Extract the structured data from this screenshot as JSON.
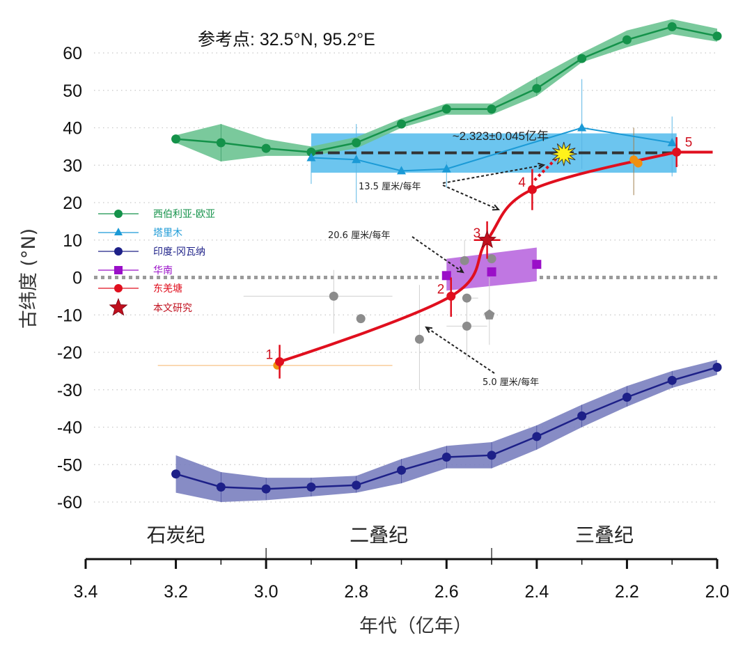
{
  "chart_data": {
    "type": "line",
    "title": "参考点: 32.5°N, 95.2°E",
    "xlabel": "年代（亿年）",
    "ylabel": "古纬度 (°N)",
    "xlim": [
      3.4,
      2.0
    ],
    "ylim": [
      -60,
      60
    ],
    "x_ticks": [
      "3.4",
      "3.2",
      "3.0",
      "2.8",
      "2.6",
      "2.4",
      "2.2",
      "2.0"
    ],
    "x_tick_values": [
      3.4,
      3.2,
      3.0,
      2.8,
      2.6,
      2.4,
      2.2,
      2.0
    ],
    "y_ticks": [
      "60",
      "50",
      "40",
      "30",
      "20",
      "10",
      "0",
      "-10",
      "-20",
      "-30",
      "-40",
      "-50",
      "-60"
    ],
    "y_tick_values": [
      60,
      50,
      40,
      30,
      20,
      10,
      0,
      -10,
      -20,
      -30,
      -40,
      -50,
      -60
    ],
    "grid": "horizontal dotted",
    "periods": [
      {
        "name": "石炭纪",
        "from": 3.4,
        "to": 3.0
      },
      {
        "name": "二叠纪",
        "from": 3.0,
        "to": 2.5
      },
      {
        "name": "三叠纪",
        "from": 2.5,
        "to": 2.0
      }
    ],
    "legend_position": "left-middle",
    "series": [
      {
        "name": "西伯利亚-欧亚",
        "color": "#14924a",
        "band_color": "#6cc391",
        "marker": "circle",
        "x": [
          3.2,
          3.1,
          3.0,
          2.9,
          2.8,
          2.7,
          2.6,
          2.5,
          2.4,
          2.3,
          2.2,
          2.1,
          2.0
        ],
        "y": [
          37,
          36,
          34.5,
          33.5,
          36,
          41,
          45,
          45,
          50.5,
          58.5,
          63.5,
          67,
          64.5
        ],
        "band_low": [
          36,
          31,
          32.5,
          32.5,
          34.5,
          40,
          43.5,
          43.5,
          48.5,
          57.5,
          61.5,
          65,
          63
        ],
        "band_high": [
          38,
          41,
          37,
          35,
          37.5,
          42.5,
          46.5,
          46.5,
          53.5,
          60,
          66,
          69,
          66.5
        ]
      },
      {
        "name": "塔里木",
        "color": "#1b9ad6",
        "marker": "triangle",
        "x": [
          2.9,
          2.8,
          2.7,
          2.6,
          2.3,
          2.1
        ],
        "y": [
          32,
          31.5,
          28.5,
          29,
          40,
          36
        ],
        "err_low": [
          25,
          20,
          28.5,
          24,
          29,
          27
        ],
        "err_high": [
          33,
          41,
          28.5,
          31,
          53,
          43
        ],
        "band_x": [
          2.9,
          2.09
        ],
        "band_y": [
          28,
          38.5
        ],
        "band_color": "#6cc5ef"
      },
      {
        "name": "印度-冈瓦纳",
        "color": "#1d2088",
        "band_color": "#7a80bf",
        "marker": "circle",
        "x": [
          3.2,
          3.1,
          3.0,
          2.9,
          2.8,
          2.7,
          2.6,
          2.5,
          2.4,
          2.3,
          2.2,
          2.1,
          2.0
        ],
        "y": [
          -52.5,
          -56,
          -56.5,
          -56,
          -55.5,
          -51.5,
          -48,
          -47.5,
          -42.5,
          -37,
          -32,
          -27.5,
          -24
        ],
        "band_low": [
          -57.5,
          -60,
          -59.5,
          -58.5,
          -57.5,
          -55,
          -51,
          -51,
          -46,
          -40,
          -34.5,
          -29.5,
          -26
        ],
        "band_high": [
          -47.5,
          -52,
          -53.5,
          -53.5,
          -53,
          -48.5,
          -45,
          -44,
          -39.5,
          -34,
          -29,
          -25,
          -22
        ]
      },
      {
        "name": "华南",
        "color": "#9a0fc8",
        "band_color": "#c077e2",
        "marker": "square",
        "x": [
          2.6,
          2.5,
          2.4
        ],
        "y": [
          0.5,
          1.5,
          3.5
        ],
        "band_polygon_x": [
          2.6,
          2.4,
          2.4,
          2.6
        ],
        "band_polygon_y": [
          5,
          8,
          -1,
          -3.5
        ]
      },
      {
        "name": "东羌塘",
        "color": "#e00f1e",
        "marker": "circle",
        "labels": [
          "1",
          "2",
          "3",
          "4",
          "5"
        ],
        "x": [
          2.97,
          2.59,
          2.51,
          2.41,
          2.09
        ],
        "y": [
          -22.5,
          -5,
          10,
          23.5,
          33.5
        ],
        "err_low": [
          -27,
          -10.5,
          5,
          18,
          29.5
        ],
        "err_high": [
          -18,
          0,
          15,
          29,
          37.5
        ]
      },
      {
        "name": "本文研究",
        "color": "#c0101e",
        "marker": "star",
        "x": [
          2.51
        ],
        "y": [
          10
        ]
      }
    ],
    "other_points": {
      "name": "grey reference poles",
      "color": "#8c8c8c",
      "points": [
        {
          "x": 2.85,
          "y": -5,
          "xerr": [
            3.05,
            2.72
          ],
          "yerr": [
            -15,
            2
          ]
        },
        {
          "x": 2.79,
          "y": -11
        },
        {
          "x": 2.66,
          "y": -16.5,
          "yerr": [
            -30,
            -2
          ]
        },
        {
          "x": 2.56,
          "y": 4.5,
          "yerr": [
            4.5,
            10
          ]
        },
        {
          "x": 2.555,
          "y": -5.5,
          "xerr": [
            2.56,
            2.53
          ]
        },
        {
          "x": 2.555,
          "y": -13,
          "xerr": [
            2.6,
            2.51
          ],
          "yerr": [
            -22,
            -5
          ]
        },
        {
          "x": 2.5,
          "y": 5
        },
        {
          "x": 2.505,
          "y": -10,
          "shape": "pentagon",
          "yerr": [
            -18,
            0
          ]
        }
      ]
    },
    "orange_points": {
      "color": "#f0900f",
      "points": [
        {
          "x": 2.975,
          "y": -23.5,
          "xerr": [
            3.24,
            2.72
          ]
        },
        {
          "x": 2.185,
          "y": 31.5,
          "yerr": [
            22,
            40
          ]
        },
        {
          "x": 2.175,
          "y": 30.5
        }
      ]
    },
    "fit_curve": {
      "color": "#e00f1e",
      "through": "东羌塘"
    },
    "reference_line": {
      "y": 33.3,
      "style": "dashed",
      "color": "#333333",
      "from": 2.9,
      "to": 2.09
    },
    "equator_line": {
      "y": 0,
      "style": "dotted",
      "color": "#9a9a9a"
    },
    "collision": {
      "x": 2.34,
      "y": 33,
      "label": "~2.323±0.045亿年",
      "marker": "yellow-burst"
    },
    "annotations": [
      {
        "text": "13.5 厘米/每年",
        "x": 2.76,
        "y": 24.5
      },
      {
        "text": "20.6 厘米/每年",
        "x": 2.76,
        "y": 11.5
      },
      {
        "text": "5.0 厘米/每年",
        "x": 2.47,
        "y": -27
      }
    ]
  }
}
